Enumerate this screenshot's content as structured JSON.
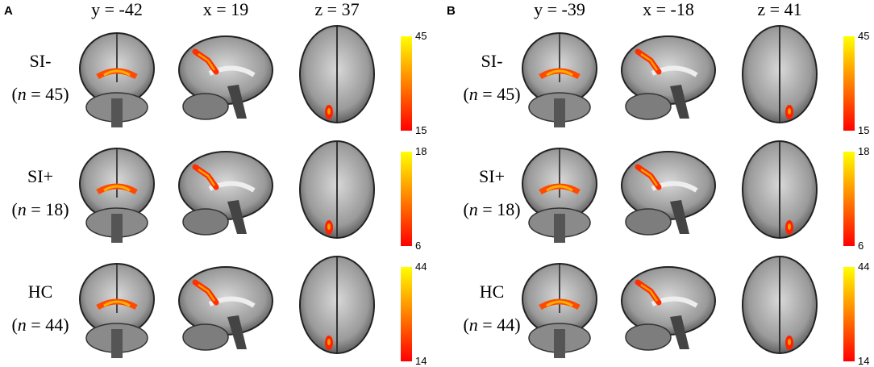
{
  "panels": [
    {
      "label": "A",
      "columns": [
        "y = -42",
        "x = 19",
        "z = 37"
      ],
      "rows": [
        {
          "group": "SI-",
          "n": [
            "(",
            "n",
            " = 45)"
          ],
          "colorbar": {
            "max": 45,
            "min": 15
          }
        },
        {
          "group": "SI+",
          "n": [
            "(",
            "n",
            " = 18)"
          ],
          "colorbar": {
            "max": 18,
            "min": 6
          }
        },
        {
          "group": "HC",
          "n": [
            "(",
            "n",
            " = 44)"
          ],
          "colorbar": {
            "max": 44,
            "min": 14
          }
        }
      ]
    },
    {
      "label": "B",
      "columns": [
        "y = -39",
        "x = -18",
        "z = 41"
      ],
      "rows": [
        {
          "group": "SI-",
          "n": [
            "(",
            "n",
            " = 45)"
          ],
          "colorbar": {
            "max": 45,
            "min": 15
          }
        },
        {
          "group": "SI+",
          "n": [
            "(",
            "n",
            " = 18)"
          ],
          "colorbar": {
            "max": 18,
            "min": 6
          }
        },
        {
          "group": "HC",
          "n": [
            "(",
            "n",
            " = 44)"
          ],
          "colorbar": {
            "max": 44,
            "min": 14
          }
        }
      ]
    }
  ]
}
